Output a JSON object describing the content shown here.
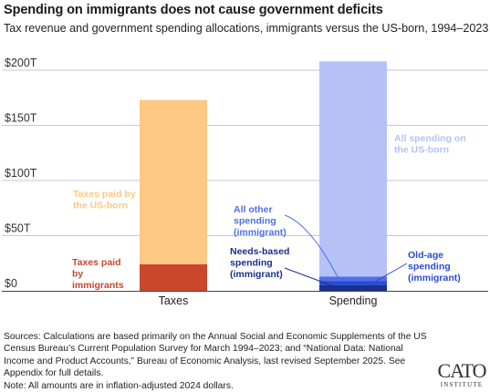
{
  "chart_data": {
    "type": "bar",
    "stacked": true,
    "title": "Spending on immigrants does not cause government deficits",
    "subtitle": "Tax revenue and government spending allocations, immigrants versus the US-born, 1994–2023",
    "categories": [
      "Taxes",
      "Spending"
    ],
    "yticks": [
      "$0",
      "$50T",
      "$100T",
      "$150T",
      "$200T"
    ],
    "ylim": [
      0,
      200
    ],
    "grid": true,
    "series": [
      {
        "name": "Taxes paid by immigrants",
        "label_lines": [
          "Taxes paid",
          "by",
          "immigrants"
        ],
        "color": "#c9472c",
        "values": [
          24,
          0
        ]
      },
      {
        "name": "Taxes paid by the US-born",
        "label_lines": [
          "Taxes paid by",
          "the US-born"
        ],
        "color": "#fdc882",
        "values": [
          149,
          0
        ]
      },
      {
        "name": "Needs-based spending (immigrant)",
        "label_lines": [
          "Needs-based",
          "spending",
          "(immigrant)"
        ],
        "color": "#1b2f8f",
        "values": [
          0,
          5
        ]
      },
      {
        "name": "Old-age spending (immigrant)",
        "label_lines": [
          "Old-age",
          "spending",
          "(immigrant)"
        ],
        "color": "#2c4bd3",
        "values": [
          0,
          4
        ]
      },
      {
        "name": "All other spending (immigrant)",
        "label_lines": [
          "All other",
          "spending",
          "(immigrant)"
        ],
        "color": "#4f6fe6",
        "values": [
          0,
          4
        ]
      },
      {
        "name": "All spending on the US-born",
        "label_lines": [
          "All spending on",
          "the US-born"
        ],
        "color": "#b6c1f6",
        "values": [
          0,
          195
        ]
      }
    ]
  },
  "footer": {
    "sources": "Sources: Calculations are based primarily on the Annual Social and Economic Supplements of the US Census Bureau’s Current Population Survey for March 1994–2023; and “National Data: National Income and Product Accounts,” Bureau of Economic Analysis, last revised September 2025. See Appendix for full details.",
    "note": "Note: All amounts are in inflation-adjusted 2024 dollars."
  },
  "logo": {
    "line1": "CATO",
    "line2": "INSTITUTE"
  }
}
